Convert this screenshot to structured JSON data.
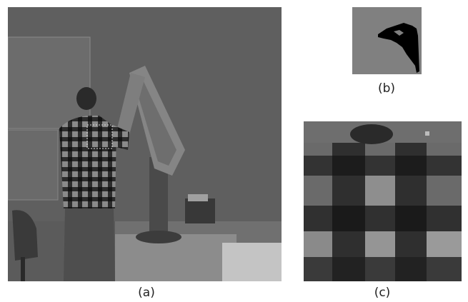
{
  "figure": {
    "panels": [
      {
        "id": "a",
        "caption": "(a)",
        "content": "photo"
      },
      {
        "id": "b",
        "caption": "(b)",
        "content": "binary-mask"
      },
      {
        "id": "c",
        "caption": "(c)",
        "content": "magnified-patch"
      }
    ],
    "colors": {
      "background": "#ffffff",
      "mask_gray": "#808080",
      "mask_black": "#000000",
      "roi_box": "#dddddd"
    }
  }
}
